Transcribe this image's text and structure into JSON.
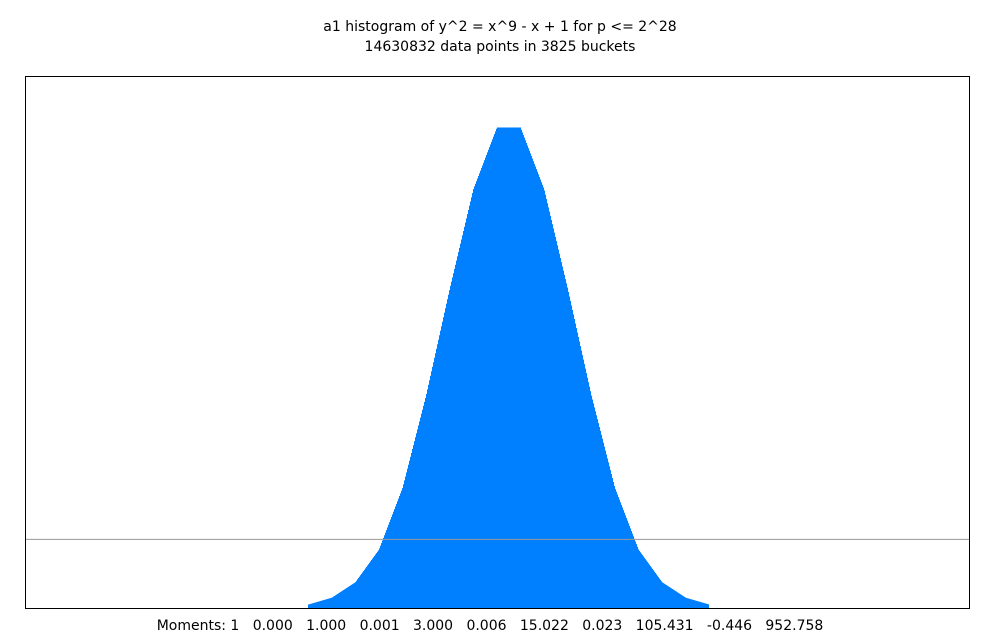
{
  "chart_data": {
    "type": "bar",
    "title": "a1 histogram of y^2 = x^9 - x + 1 for p <= 2^28",
    "subtitle": "14630832 data points in 3825 buckets",
    "xlim": [
      -2,
      2
    ],
    "ylim": [
      0,
      1.55
    ],
    "reference_line": 0.2,
    "bar_color": "#0080ff",
    "frame_color": "#000000",
    "reference_line_color": "#999999",
    "x": [
      -0.8,
      -0.7,
      -0.6,
      -0.5,
      -0.4,
      -0.3,
      -0.2,
      -0.1,
      0.0,
      0.1,
      0.2,
      0.3,
      0.4,
      0.5,
      0.6,
      0.7,
      0.8,
      0.9
    ],
    "values": [
      0.01,
      0.03,
      0.075,
      0.17,
      0.35,
      0.62,
      0.93,
      1.22,
      1.4,
      1.4,
      1.22,
      0.93,
      0.62,
      0.35,
      0.17,
      0.075,
      0.03,
      0.01
    ],
    "moments_label": "Moments:",
    "moments": [
      "1",
      "0.000",
      "1.000",
      "0.001",
      "3.000",
      "0.006",
      "15.022",
      "0.023",
      "105.431",
      "-0.446",
      "952.758"
    ]
  }
}
